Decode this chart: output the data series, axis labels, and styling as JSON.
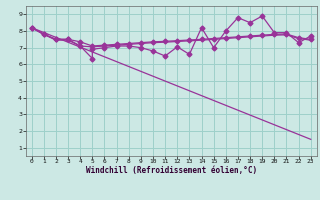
{
  "xlabel": "Windchill (Refroidissement éolien,°C)",
  "xlim": [
    -0.5,
    23.5
  ],
  "ylim": [
    0.5,
    9.5
  ],
  "yticks": [
    1,
    2,
    3,
    4,
    5,
    6,
    7,
    8,
    9
  ],
  "xticks": [
    0,
    1,
    2,
    3,
    4,
    5,
    6,
    7,
    8,
    9,
    10,
    11,
    12,
    13,
    14,
    15,
    16,
    17,
    18,
    19,
    20,
    21,
    22,
    23
  ],
  "bg_color": "#cce8e4",
  "grid_color": "#9ed0ca",
  "line_color": "#993399",
  "line1_x": [
    0,
    1,
    2,
    3,
    4,
    5,
    5,
    6,
    7,
    8,
    9,
    10,
    11,
    12,
    13,
    14,
    15,
    16,
    17,
    18,
    19,
    20,
    21,
    22,
    23
  ],
  "line1_y": [
    8.2,
    7.8,
    7.5,
    7.5,
    7.1,
    6.35,
    6.9,
    7.0,
    7.1,
    7.1,
    7.0,
    6.8,
    6.5,
    7.05,
    6.6,
    8.2,
    7.0,
    8.0,
    8.8,
    8.5,
    8.9,
    7.9,
    7.9,
    7.3,
    7.7
  ],
  "line2_x": [
    0,
    1,
    2,
    3,
    4,
    5,
    6,
    7,
    8,
    9,
    10,
    11,
    12,
    13,
    14,
    15,
    16,
    17,
    18,
    19,
    20,
    21,
    22,
    23
  ],
  "line2_y": [
    8.2,
    7.8,
    7.5,
    7.5,
    7.35,
    7.1,
    7.15,
    7.2,
    7.25,
    7.3,
    7.35,
    7.38,
    7.42,
    7.46,
    7.5,
    7.55,
    7.6,
    7.65,
    7.7,
    7.75,
    7.8,
    7.82,
    7.6,
    7.5
  ],
  "line3_x": [
    0,
    1,
    2,
    3,
    4,
    5,
    6,
    7,
    8,
    9,
    10,
    11,
    12,
    13,
    14,
    15,
    16,
    17,
    18,
    19,
    20,
    21,
    22,
    23
  ],
  "line3_y": [
    8.2,
    7.8,
    7.45,
    7.45,
    7.1,
    7.05,
    7.1,
    7.15,
    7.2,
    7.25,
    7.3,
    7.33,
    7.37,
    7.41,
    7.45,
    7.5,
    7.55,
    7.6,
    7.65,
    7.7,
    7.75,
    7.77,
    7.55,
    7.45
  ],
  "line4_x": [
    0,
    23
  ],
  "line4_y": [
    8.2,
    1.5
  ],
  "marker": "D",
  "marker_size": 2.5,
  "linewidth": 0.9,
  "fontsize_ticks": 4.5,
  "fontsize_xlabel": 5.5
}
